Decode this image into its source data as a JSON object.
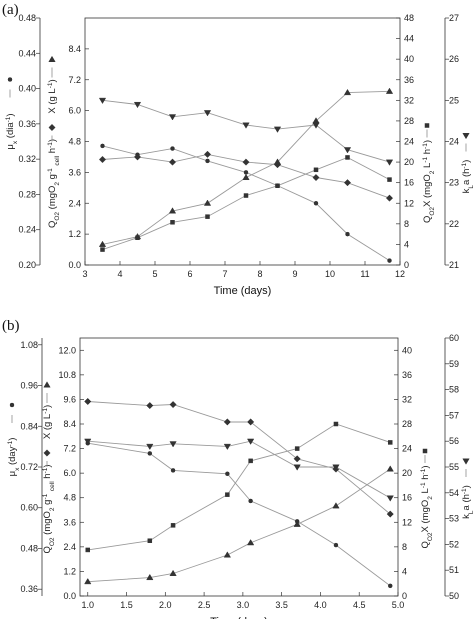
{
  "chart_data": [
    {
      "panel_label": "(a)",
      "type": "line",
      "xlabel": "Time (days)",
      "xlim": [
        3,
        12
      ],
      "xticks": [
        "3",
        "4",
        "5",
        "6",
        "7",
        "8",
        "9",
        "10",
        "11",
        "12"
      ],
      "axes": {
        "mu": {
          "label": "μ_x (dia⁻¹)",
          "lim": [
            0.2,
            0.48
          ],
          "ticks": [
            "0.20",
            "0.24",
            "0.28",
            "0.32",
            "0.36",
            "0.40",
            "0.44",
            "0.48"
          ],
          "marker": "circle"
        },
        "q": {
          "label": "Q_O2 (mgO2 g⁻¹cell h⁻¹)",
          "lim": [
            0.0,
            9.6
          ],
          "ticks": [
            "0.0",
            "1.2",
            "2.4",
            "3.6",
            "4.8",
            "6.0",
            "7.2",
            "8.4"
          ],
          "marker": "diamond"
        },
        "x": {
          "label": "X (g L⁻¹)",
          "marker": "triangle-up"
        },
        "qx": {
          "label": "Q_O2X (mgO2 L⁻¹ h⁻¹)",
          "lim": [
            0,
            48
          ],
          "ticks": [
            "0",
            "4",
            "8",
            "12",
            "16",
            "20",
            "24",
            "28",
            "32",
            "36",
            "40",
            "44",
            "48"
          ],
          "marker": "square"
        },
        "kla": {
          "label": "k_La (h⁻¹)",
          "lim": [
            21,
            27
          ],
          "ticks": [
            "21",
            "22",
            "23",
            "24",
            "25",
            "26",
            "27"
          ],
          "marker": "triangle-down"
        }
      },
      "series": [
        {
          "key": "mu",
          "axis": "mu",
          "x": [
            3.5,
            4.5,
            5.5,
            6.5,
            7.6,
            8.5,
            9.6,
            10.5,
            11.7
          ],
          "values": [
            0.335,
            0.325,
            0.332,
            0.318,
            0.305,
            0.29,
            0.27,
            0.235,
            0.205
          ]
        },
        {
          "key": "q",
          "axis": "q",
          "x": [
            3.5,
            4.5,
            5.5,
            6.5,
            7.6,
            8.5,
            9.6,
            10.5,
            11.7
          ],
          "values": [
            4.1,
            4.2,
            4.0,
            4.3,
            4.0,
            3.9,
            3.4,
            3.2,
            2.6
          ]
        },
        {
          "key": "x",
          "axis": "q",
          "x": [
            3.5,
            4.5,
            5.5,
            6.5,
            7.6,
            8.5,
            9.6,
            10.5,
            11.7
          ],
          "values": [
            0.8,
            1.1,
            2.1,
            2.4,
            3.4,
            4.0,
            5.6,
            6.7,
            6.75
          ]
        },
        {
          "key": "qx",
          "axis": "qx",
          "x": [
            3.5,
            4.5,
            5.5,
            6.5,
            7.6,
            8.5,
            9.6,
            10.5,
            11.7
          ],
          "values": [
            3.0,
            5.3,
            8.3,
            9.4,
            13.5,
            15.4,
            18.5,
            20.9,
            16.6
          ]
        },
        {
          "key": "kla",
          "axis": "kla",
          "x": [
            3.5,
            4.5,
            5.5,
            6.5,
            7.6,
            8.5,
            9.6,
            10.5,
            11.7
          ],
          "values": [
            25.0,
            24.9,
            24.6,
            24.7,
            24.4,
            24.3,
            24.4,
            23.8,
            23.5
          ]
        }
      ]
    },
    {
      "panel_label": "(b)",
      "type": "line",
      "xlabel": "Time (days)",
      "xlim": [
        0.9,
        5.0
      ],
      "xticks": [
        "1.0",
        "1.5",
        "2.0",
        "2.5",
        "3.0",
        "3.5",
        "4.0",
        "4.5",
        "5.0"
      ],
      "axes": {
        "mu": {
          "label": "μ_x (day⁻¹)",
          "lim": [
            0.34,
            1.1
          ],
          "ticks": [
            "0.36",
            "0.48",
            "0.60",
            "0.72",
            "0.84",
            "0.96",
            "1.08"
          ],
          "marker": "circle"
        },
        "q": {
          "label": "Q_O2 (mgO2 g⁻¹cell h⁻¹)",
          "lim": [
            0.0,
            12.6
          ],
          "ticks": [
            "0.0",
            "1.2",
            "2.4",
            "3.6",
            "4.8",
            "6.0",
            "7.2",
            "8.4",
            "9.6",
            "10.8",
            "12.0"
          ],
          "marker": "diamond"
        },
        "x": {
          "label": "X (g L⁻¹)",
          "marker": "triangle-up"
        },
        "qx": {
          "label": "Q_O2X (mgO2 L⁻¹ h⁻¹)",
          "lim": [
            0,
            42
          ],
          "ticks": [
            "0",
            "4",
            "8",
            "12",
            "16",
            "20",
            "24",
            "28",
            "32",
            "36",
            "40"
          ],
          "marker": "square"
        },
        "kla": {
          "label": "k_La (h⁻¹)",
          "lim": [
            50,
            60
          ],
          "ticks": [
            "50",
            "51",
            "52",
            "53",
            "54",
            "55",
            "56",
            "57",
            "58",
            "59",
            "60"
          ],
          "marker": "triangle-down"
        }
      },
      "series": [
        {
          "key": "mu",
          "axis": "mu",
          "x": [
            1.0,
            1.8,
            2.1,
            2.8,
            3.1,
            3.7,
            4.2,
            4.9
          ],
          "values": [
            0.79,
            0.76,
            0.71,
            0.7,
            0.62,
            0.56,
            0.49,
            0.37
          ]
        },
        {
          "key": "q",
          "axis": "q",
          "x": [
            1.0,
            1.8,
            2.1,
            2.8,
            3.1,
            3.7,
            4.2,
            4.9
          ],
          "values": [
            9.5,
            9.3,
            9.35,
            8.5,
            8.5,
            6.7,
            6.2,
            4.0
          ]
        },
        {
          "key": "x",
          "axis": "q",
          "x": [
            1.0,
            1.8,
            2.1,
            2.8,
            3.1,
            3.7,
            4.2,
            4.9
          ],
          "values": [
            0.7,
            0.9,
            1.1,
            2.0,
            2.6,
            3.5,
            4.4,
            6.2
          ]
        },
        {
          "key": "qx",
          "axis": "qx",
          "x": [
            1.0,
            1.8,
            2.1,
            2.8,
            3.1,
            3.7,
            4.2,
            4.9
          ],
          "values": [
            7.5,
            9.0,
            11.5,
            16.5,
            22.0,
            24.0,
            28.0,
            25.0
          ]
        },
        {
          "key": "kla",
          "axis": "kla",
          "x": [
            1.0,
            1.8,
            2.1,
            2.8,
            3.1,
            3.7,
            4.2,
            4.9
          ],
          "values": [
            56.0,
            55.8,
            55.9,
            55.8,
            56.0,
            55.0,
            55.0,
            53.8
          ]
        }
      ]
    }
  ]
}
